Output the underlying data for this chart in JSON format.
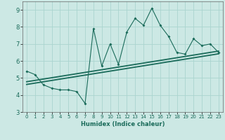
{
  "xlabel": "Humidex (Indice chaleur)",
  "x_data": [
    0,
    1,
    2,
    3,
    4,
    5,
    6,
    7,
    8,
    9,
    10,
    11,
    12,
    13,
    14,
    15,
    16,
    17,
    18,
    19,
    20,
    21,
    22,
    23
  ],
  "y_main": [
    5.4,
    5.2,
    4.6,
    4.4,
    4.3,
    4.3,
    4.2,
    3.5,
    7.9,
    5.7,
    7.0,
    5.8,
    7.7,
    8.5,
    8.1,
    9.1,
    8.1,
    7.45,
    6.5,
    6.4,
    7.3,
    6.9,
    7.0,
    6.5
  ],
  "reg_line1_x": [
    0,
    23
  ],
  "reg_line1_y": [
    4.78,
    6.58
  ],
  "reg_line2_x": [
    0,
    23
  ],
  "reg_line2_y": [
    4.62,
    6.42
  ],
  "xlim": [
    -0.5,
    23.5
  ],
  "ylim": [
    3.0,
    9.5
  ],
  "yticks": [
    3,
    4,
    5,
    6,
    7,
    8,
    9
  ],
  "xticks": [
    0,
    1,
    2,
    3,
    4,
    5,
    6,
    7,
    8,
    9,
    10,
    11,
    12,
    13,
    14,
    15,
    16,
    17,
    18,
    19,
    20,
    21,
    22,
    23
  ],
  "line_color": "#1a6b5a",
  "bg_color": "#cce8e4",
  "grid_color": "#aad4cf",
  "xlabel_fontsize": 6.0,
  "tick_fontsize": 5.0
}
